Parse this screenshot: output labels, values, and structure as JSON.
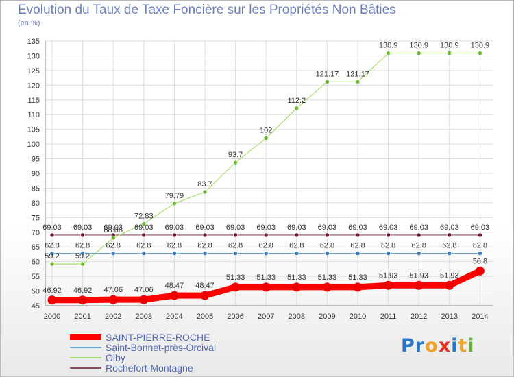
{
  "header": {
    "title": "Evolution du Taux de Taxe Foncière sur les Propriétés Non Bâties",
    "unit": "(en %)"
  },
  "logo": {
    "text": "Proxiti",
    "letters": [
      "P",
      "r",
      "o",
      "x",
      "i",
      "t",
      "i"
    ],
    "colors": [
      "#2a74c8",
      "#2a74c8",
      "#f0a020",
      "#e83020",
      "#2a74c8",
      "#f0a020",
      "#6ab040"
    ]
  },
  "chart_data": {
    "type": "line",
    "x": [
      "2000",
      "2001",
      "2002",
      "2003",
      "2004",
      "2005",
      "2006",
      "2007",
      "2008",
      "2009",
      "2010",
      "2011",
      "2012",
      "2013",
      "2014"
    ],
    "ylim": [
      45,
      135
    ],
    "yticks": [
      45,
      50,
      55,
      60,
      65,
      70,
      75,
      80,
      85,
      90,
      95,
      100,
      105,
      110,
      115,
      120,
      125,
      130,
      135
    ],
    "grid": true,
    "legend_position": "bottom-left",
    "series": [
      {
        "name": "SAINT-PIERRE-ROCHE",
        "color": "#ff0000",
        "marker_color": "#ee0000",
        "width": 9,
        "marker_r": 6.5,
        "values": [
          46.92,
          46.92,
          47.06,
          47.06,
          48.47,
          48.47,
          51.33,
          51.33,
          51.33,
          51.33,
          51.33,
          51.93,
          51.93,
          51.93,
          56.8
        ],
        "labels": [
          "46.92",
          "46.92",
          "47.06",
          "47.06",
          "48.47",
          "48.47",
          "51.33",
          "51.33",
          "51.33",
          "51.33",
          "51.33",
          "51.93",
          "51.93",
          "51.93",
          "56.8"
        ]
      },
      {
        "name": "Saint-Bonnet-près-Orcival",
        "color": "#6aa8d8",
        "marker_color": "#3a78b8",
        "width": 1.2,
        "marker_r": 3,
        "values": [
          62.8,
          62.8,
          62.8,
          62.8,
          62.8,
          62.8,
          62.8,
          62.8,
          62.8,
          62.8,
          62.8,
          62.8,
          62.8,
          62.8,
          62.8
        ],
        "labels": [
          "62.8",
          "62.8",
          "62.8",
          "62.8",
          "62.8",
          "62.8",
          "62.8",
          "62.8",
          "62.8",
          "62.8",
          "62.8",
          "62.8",
          "62.8",
          "62.8",
          "62.8"
        ]
      },
      {
        "name": "Olby",
        "color": "#a8e070",
        "marker_color": "#6ab830",
        "width": 1.2,
        "marker_r": 3,
        "values": [
          59.2,
          59.2,
          68.08,
          72.83,
          79.79,
          83.7,
          93.7,
          102,
          112.2,
          121.17,
          121.17,
          130.9,
          130.9,
          130.9,
          130.9
        ],
        "labels": [
          "59.2",
          "59.2",
          "68.08",
          "72.83",
          "79.79",
          "83.7",
          "93.7",
          "102",
          "112.2",
          "121.17",
          "121.17",
          "130.9",
          "130.9",
          "130.9",
          "130.9"
        ]
      },
      {
        "name": "Rochefort-Montagne",
        "color": "#8a5060",
        "marker_color": "#6a1a2a",
        "width": 1.2,
        "marker_r": 3,
        "values": [
          69.03,
          69.03,
          69.03,
          69.03,
          69.03,
          69.03,
          69.03,
          69.03,
          69.03,
          69.03,
          69.03,
          69.03,
          69.03,
          69.03,
          69.03
        ],
        "labels": [
          "69.03",
          "69.03",
          "69.03",
          "69.03",
          "69.03",
          "69.03",
          "69.03",
          "69.03",
          "69.03",
          "69.03",
          "69.03",
          "69.03",
          "69.03",
          "69.03",
          "69.03"
        ]
      }
    ]
  }
}
